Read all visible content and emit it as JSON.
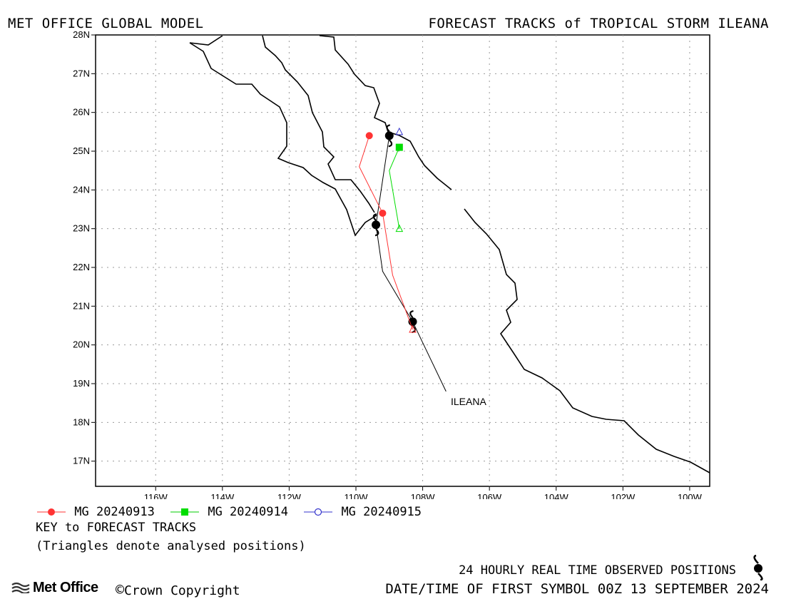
{
  "header": {
    "left": "MET OFFICE GLOBAL MODEL",
    "right": "FORECAST TRACKS of TROPICAL STORM ILEANA"
  },
  "map": {
    "lat_labels": [
      "28N",
      "27N",
      "26N",
      "25N",
      "24N",
      "23N",
      "22N",
      "21N",
      "20N",
      "19N",
      "18N",
      "17N"
    ],
    "lon_labels": [
      "116W",
      "114W",
      "112W",
      "110W",
      "108W",
      "106W",
      "104W",
      "102W",
      "100W"
    ],
    "lat_range": [
      16.35,
      28
    ],
    "lon_range": [
      -117.8,
      -99.4
    ],
    "storm_label": "ILEANA"
  },
  "legend": {
    "items": [
      {
        "label": "MG 20240913",
        "color": "#ff3333",
        "marker": "circle-filled"
      },
      {
        "label": "MG 20240914",
        "color": "#00dd00",
        "marker": "square-filled"
      },
      {
        "label": "MG 20240915",
        "color": "#3333cc",
        "marker": "circle-open"
      }
    ],
    "key_title": "KEY to FORECAST TRACKS",
    "key_note": "(Triangles denote analysed positions)"
  },
  "footer": {
    "observed": "24 HOURLY REAL TIME OBSERVED POSITIONS",
    "logo": "Met Office",
    "copyright": "Crown Copyright",
    "datetime": "DATE/TIME OF FIRST SYMBOL 00Z 13 SEPTEMBER 2024"
  },
  "chart_data": {
    "type": "scatter",
    "title": "FORECAST TRACKS of TROPICAL STORM ILEANA",
    "observed_track": [
      {
        "lat": 18.8,
        "lon": -107.3
      },
      {
        "lat": 20.6,
        "lon": -108.3
      },
      {
        "lat": 21.9,
        "lon": -109.2
      },
      {
        "lat": 23.1,
        "lon": -109.4
      },
      {
        "lat": 25.4,
        "lon": -109.0
      }
    ],
    "observed_positions": [
      {
        "lat": 20.6,
        "lon": -108.3
      },
      {
        "lat": 23.1,
        "lon": -109.4
      },
      {
        "lat": 25.4,
        "lon": -109.0
      }
    ],
    "series": [
      {
        "name": "MG 20240913",
        "color": "#ff3333",
        "points": [
          {
            "lat": 20.4,
            "lon": -108.3
          },
          {
            "lat": 21.8,
            "lon": -108.9
          },
          {
            "lat": 23.4,
            "lon": -109.2
          },
          {
            "lat": 24.6,
            "lon": -109.9
          },
          {
            "lat": 25.4,
            "lon": -109.6
          }
        ],
        "markers": [
          {
            "lat": 23.4,
            "lon": -109.2
          },
          {
            "lat": 25.4,
            "lon": -109.6
          }
        ],
        "analysed": {
          "lat": 20.4,
          "lon": -108.3
        }
      },
      {
        "name": "MG 20240914",
        "color": "#00dd00",
        "points": [
          {
            "lat": 23.0,
            "lon": -108.7
          },
          {
            "lat": 24.5,
            "lon": -109.0
          },
          {
            "lat": 25.1,
            "lon": -108.7
          }
        ],
        "markers": [
          {
            "lat": 25.1,
            "lon": -108.7
          }
        ],
        "analysed": {
          "lat": 23.0,
          "lon": -108.7
        }
      },
      {
        "name": "MG 20240915",
        "color": "#3333cc",
        "points": [
          {
            "lat": 25.5,
            "lon": -108.7
          }
        ],
        "markers": [],
        "analysed": {
          "lat": 25.5,
          "lon": -108.7
        }
      }
    ]
  }
}
